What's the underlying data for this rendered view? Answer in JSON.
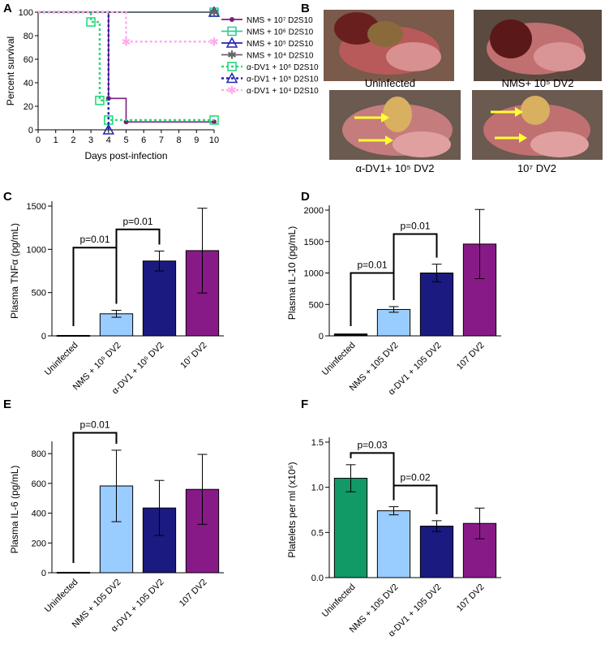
{
  "panels": {
    "A": "A",
    "B": "B",
    "C": "C",
    "D": "D",
    "E": "E",
    "F": "F"
  },
  "photos": {
    "captions": [
      "Uninfected",
      "NMS+ 10⁵ DV2",
      "α-DV1+ 10⁵ DV2",
      "10⁷ DV2"
    ]
  },
  "chart_data": [
    {
      "id": "A",
      "type": "line",
      "title": "",
      "xlabel": "Days post-infection",
      "ylabel": "Percent survival",
      "xlim": [
        0,
        10
      ],
      "ylim": [
        0,
        100
      ],
      "xticks": [
        "0",
        "1",
        "2",
        "3",
        "4",
        "5",
        "6",
        "7",
        "8",
        "9",
        "10"
      ],
      "yticks": [
        "0",
        "20",
        "40",
        "60",
        "80",
        "100"
      ],
      "series": [
        {
          "name": "NMS + 10⁷ D2S10",
          "color": "#7b1f7b",
          "x": [
            0,
            4,
            4,
            5,
            5,
            10
          ],
          "y": [
            100,
            100,
            26.7,
            26.7,
            6.7,
            6.7
          ],
          "marker": "dot"
        },
        {
          "name": "NMS + 10⁶ D2S10",
          "color": "#33cc99",
          "x": [
            0,
            10
          ],
          "y": [
            100,
            100
          ],
          "marker": "square"
        },
        {
          "name": "NMS + 10⁵ D2S10",
          "color": "#2222aa",
          "x": [
            0,
            10
          ],
          "y": [
            100,
            100
          ],
          "marker": "triangle"
        },
        {
          "name": "NMS + 10⁴ D2S10",
          "color": "#666666",
          "x": [
            0,
            10
          ],
          "y": [
            100,
            100
          ],
          "marker": "star"
        },
        {
          "name": "α-DV1 + 10⁶ D2S10",
          "color": "#22dd77",
          "x": [
            0,
            3,
            3,
            3.5,
            3.5,
            4,
            4,
            10
          ],
          "y": [
            100,
            100,
            91.7,
            91.7,
            25,
            25,
            8.3,
            8.3
          ],
          "marker": "square",
          "dashed": true
        },
        {
          "name": "α-DV1 + 10⁵ D2S10",
          "color": "#2222aa",
          "x": [
            0,
            4,
            4
          ],
          "y": [
            100,
            100,
            0
          ],
          "marker": "triangle",
          "dashed": true
        },
        {
          "name": "α-DV1 + 10⁴ D2S10",
          "color": "#ffaaee",
          "x": [
            0,
            5,
            5,
            10
          ],
          "y": [
            100,
            100,
            75,
            75
          ],
          "marker": "star",
          "dashed": true
        }
      ]
    },
    {
      "id": "C",
      "type": "bar",
      "ylabel": "Plasma TNFα (pg/mL)",
      "ylim": [
        0,
        1500
      ],
      "yticks": [
        "0",
        "500",
        "1000",
        "1500"
      ],
      "categories": [
        "Uninfected",
        "NMS + 10⁵ DV2",
        "α-DV1 + 10⁵ DV2",
        "10⁷ DV2"
      ],
      "values": [
        5,
        255,
        865,
        985
      ],
      "errors": [
        0,
        40,
        115,
        490
      ],
      "colors": [
        "#000000",
        "#99ccff",
        "#1a1a80",
        "#881a88"
      ],
      "brackets": [
        {
          "from": 0,
          "to": 1,
          "label": "p=0.01",
          "level": 1020
        },
        {
          "from": 1,
          "to": 2,
          "label": "p=0.01",
          "level": 1230
        }
      ]
    },
    {
      "id": "D",
      "type": "bar",
      "ylabel": "Plasma IL-10 (pg/mL)",
      "ylim": [
        0,
        2000
      ],
      "yticks": [
        "0",
        "500",
        "1000",
        "1500",
        "2000"
      ],
      "categories": [
        "Uninfected",
        "NMS + 105 DV2",
        "α-DV1 + 105 DV2",
        "107 DV2"
      ],
      "values": [
        30,
        420,
        1000,
        1460
      ],
      "errors": [
        0,
        45,
        140,
        550
      ],
      "colors": [
        "#000000",
        "#99ccff",
        "#1a1a80",
        "#881a88"
      ],
      "brackets": [
        {
          "from": 0,
          "to": 1,
          "label": "p=0.01",
          "level": 1000
        },
        {
          "from": 1,
          "to": 2,
          "label": "p=0.01",
          "level": 1620
        }
      ]
    },
    {
      "id": "E",
      "type": "bar",
      "ylabel": "Plasma IL-6 (pg/mL)",
      "ylim": [
        0,
        850
      ],
      "yticks": [
        "0",
        "200",
        "400",
        "600",
        "800"
      ],
      "categories": [
        "Uninfected",
        "NMS + 105 DV2",
        "α-DV1 + 105 DV2",
        "107 DV2"
      ],
      "values": [
        3,
        583,
        435,
        560
      ],
      "errors": [
        0,
        240,
        185,
        235
      ],
      "colors": [
        "#000000",
        "#99ccff",
        "#1a1a80",
        "#881a88"
      ],
      "brackets": [
        {
          "from": 0,
          "to": 1,
          "label": "p=0.01",
          "level": 940
        }
      ]
    },
    {
      "id": "F",
      "type": "bar",
      "ylabel": "Platelets per ml (x10⁶)",
      "ylim": [
        0,
        1.5
      ],
      "yticks": [
        "0.0",
        "0.5",
        "1.0",
        "1.5"
      ],
      "categories": [
        "Uninfected",
        "NMS + 105 DV2",
        "α-DV1 + 105 DV2",
        "107 DV2"
      ],
      "values": [
        1.1,
        0.74,
        0.57,
        0.6
      ],
      "errors": [
        0.15,
        0.045,
        0.06,
        0.17
      ],
      "colors": [
        "#119966",
        "#99ccff",
        "#1a1a80",
        "#881a88"
      ],
      "brackets": [
        {
          "from": 0,
          "to": 1,
          "label": "p=0.03",
          "level": 1.38
        },
        {
          "from": 1,
          "to": 2,
          "label": "p=0.02",
          "level": 1.02
        }
      ]
    }
  ]
}
